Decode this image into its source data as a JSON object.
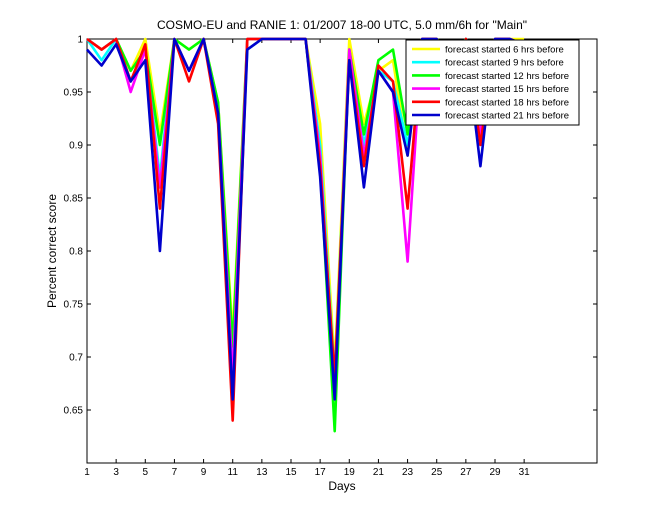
{
  "chart_data": {
    "type": "line",
    "title": "COSMO-EU and RANIE 1: 01/2007 18-00 UTC, 5.0 mm/6h for \"Main\"",
    "xlabel": "Days",
    "ylabel": "Percent correct score",
    "xlim": [
      1,
      36
    ],
    "ylim": [
      0.6,
      1.0
    ],
    "x_ticks": [
      "1",
      "3",
      "5",
      "7",
      "9",
      "11",
      "13",
      "15",
      "17",
      "19",
      "21",
      "23",
      "25",
      "27",
      "29",
      "31"
    ],
    "y_ticks": [
      "0.65",
      "0.7",
      "0.75",
      "0.8",
      "0.85",
      "0.9",
      "0.95",
      "1"
    ],
    "legend_position": "top-right",
    "x": [
      1,
      2,
      3,
      4,
      5,
      6,
      7,
      8,
      9,
      10,
      11,
      12,
      13,
      14,
      15,
      16,
      17,
      18,
      19,
      20,
      21,
      22,
      23,
      24,
      25,
      26,
      27,
      28,
      29,
      30,
      31
    ],
    "series": [
      {
        "name": "forecast started 6 hrs before",
        "color": "#ffff00",
        "values": [
          1.0,
          0.99,
          1.0,
          0.97,
          1.0,
          0.91,
          1.0,
          0.99,
          1.0,
          0.94,
          0.72,
          1.0,
          1.0,
          1.0,
          1.0,
          1.0,
          0.92,
          0.69,
          1.0,
          0.92,
          0.97,
          0.98,
          0.89,
          1.0,
          1.0,
          0.98,
          1.0,
          0.92,
          1.0,
          1.0,
          1.0
        ]
      },
      {
        "name": "forecast started 9 hrs before",
        "color": "#00ffff",
        "values": [
          1.0,
          0.98,
          1.0,
          0.96,
          0.99,
          0.87,
          1.0,
          0.97,
          1.0,
          0.93,
          0.7,
          0.99,
          1.0,
          1.0,
          1.0,
          1.0,
          0.9,
          0.68,
          0.99,
          0.9,
          0.97,
          0.96,
          0.9,
          1.0,
          1.0,
          0.97,
          1.0,
          0.91,
          1.0,
          1.0,
          0.995
        ]
      },
      {
        "name": "forecast started 12 hrs before",
        "color": "#00ff00",
        "values": [
          1.0,
          0.99,
          1.0,
          0.97,
          0.99,
          0.9,
          1.0,
          0.99,
          1.0,
          0.94,
          0.71,
          1.0,
          1.0,
          1.0,
          1.0,
          1.0,
          0.88,
          0.63,
          0.99,
          0.91,
          0.98,
          0.99,
          0.91,
          1.0,
          1.0,
          0.985,
          1.0,
          0.91,
          1.0,
          1.0,
          0.995
        ]
      },
      {
        "name": "forecast started 15 hrs before",
        "color": "#ff00ff",
        "values": [
          1.0,
          0.99,
          1.0,
          0.95,
          0.99,
          0.86,
          1.0,
          0.97,
          1.0,
          0.93,
          0.68,
          1.0,
          1.0,
          1.0,
          1.0,
          1.0,
          0.89,
          0.67,
          0.99,
          0.89,
          0.97,
          0.95,
          0.79,
          1.0,
          1.0,
          0.96,
          1.0,
          0.91,
          1.0,
          1.0,
          0.995
        ]
      },
      {
        "name": "forecast started 18 hrs before",
        "color": "#ff0000",
        "values": [
          1.0,
          0.99,
          1.0,
          0.96,
          0.995,
          0.84,
          1.0,
          0.96,
          1.0,
          0.92,
          0.64,
          1.0,
          1.0,
          1.0,
          1.0,
          1.0,
          0.88,
          0.68,
          0.98,
          0.88,
          0.975,
          0.96,
          0.84,
          1.0,
          1.0,
          0.95,
          1.0,
          0.9,
          1.0,
          1.0,
          0.995
        ]
      },
      {
        "name": "forecast started 21 hrs before",
        "color": "#0000cc",
        "values": [
          0.99,
          0.975,
          0.995,
          0.96,
          0.98,
          0.8,
          1.0,
          0.97,
          1.0,
          0.93,
          0.66,
          0.99,
          1.0,
          1.0,
          1.0,
          1.0,
          0.87,
          0.66,
          0.98,
          0.86,
          0.97,
          0.95,
          0.89,
          1.0,
          1.0,
          0.96,
          0.995,
          0.88,
          1.0,
          1.0,
          0.995
        ]
      }
    ]
  }
}
